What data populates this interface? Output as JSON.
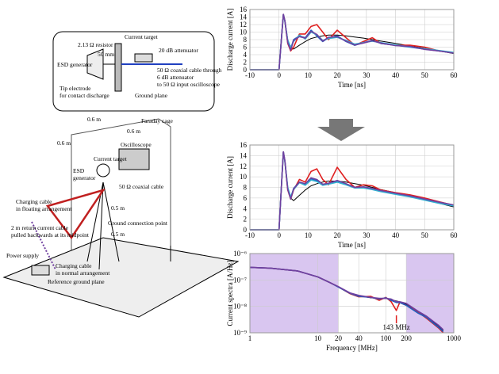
{
  "diagram": {
    "labels": [
      "2.13 Ω resistor",
      "Current target",
      "50 mm",
      "ESD generator",
      "20 dB attenuator",
      "50 Ω coaxial cable through",
      "6 dB attenuator",
      "to 50 Ω input oscilloscope",
      "Tip electrode",
      "for contact discharge",
      "Ground plane",
      "Faraday cage",
      "0.6 m",
      "0.6 m",
      "0.6 m",
      "Oscilloscope",
      "Current target",
      "ESD",
      "generator",
      "50 Ω coaxial cable",
      "Charging cable",
      "in floating arrangement",
      "0.5 m",
      "Ground connection point",
      "2 m return current cable",
      "pulled backwards at its midpoint",
      "0.5 m",
      "Power supply",
      "Charging cable",
      "in normal arrangement",
      "Reference ground plane"
    ]
  },
  "chart_data": [
    {
      "type": "line",
      "ylabel": "Discharge  current [A]",
      "xlabel": "Time [ns]",
      "xlim": [
        -10,
        60
      ],
      "xticks": [
        -10,
        0,
        10,
        20,
        30,
        40,
        50,
        60
      ],
      "ylim": [
        0,
        16
      ],
      "yticks": [
        0,
        2,
        4,
        6,
        8,
        10,
        12,
        14,
        16
      ],
      "grid": true,
      "x": [
        -10,
        0,
        1,
        1.5,
        2,
        3,
        4,
        5,
        7,
        9,
        11,
        13,
        15,
        17,
        20,
        23,
        26,
        29,
        32,
        35,
        40,
        45,
        50,
        55,
        60
      ],
      "series": [
        {
          "color": "#000000",
          "values": [
            0,
            0,
            10,
            14.7,
            13,
            8,
            6,
            5.5,
            6.5,
            7.5,
            8.3,
            8.7,
            9,
            9.2,
            9.2,
            9,
            8.7,
            8.4,
            8,
            7.6,
            7,
            6.3,
            5.7,
            5,
            4.3
          ]
        },
        {
          "color": "#e02020",
          "values": [
            0,
            0,
            10,
            14.7,
            13,
            7,
            5,
            6,
            9.5,
            9.5,
            11.5,
            12,
            10,
            8,
            10.5,
            8.5,
            6.5,
            7.5,
            8.5,
            7,
            6.5,
            6.5,
            6,
            5,
            4.5
          ]
        },
        {
          "color": "#2060c0",
          "values": [
            0,
            0,
            10,
            14.7,
            13,
            7.5,
            5.5,
            8,
            9,
            8.5,
            10.5,
            9,
            7.5,
            8.5,
            9,
            7.5,
            6.5,
            7.2,
            7.8,
            7,
            6.5,
            6,
            5.5,
            5,
            4.5
          ]
        },
        {
          "color": "#30b0d0",
          "values": [
            0,
            0,
            10,
            14.6,
            12.8,
            7.8,
            6,
            7.5,
            9.2,
            8.2,
            10,
            9.3,
            7.8,
            8.3,
            8.6,
            7.8,
            6.8,
            7.2,
            7.6,
            7.2,
            6.6,
            6.1,
            5.6,
            5.1,
            4.6
          ]
        },
        {
          "color": "#7040a0",
          "values": [
            0,
            0,
            10,
            14.7,
            13,
            7.2,
            5.2,
            7.8,
            8.8,
            8.4,
            10.2,
            9.4,
            7.6,
            8.6,
            8.8,
            7.6,
            6.6,
            7.1,
            7.7,
            7.1,
            6.4,
            6.2,
            5.4,
            5,
            4.4
          ]
        }
      ]
    },
    {
      "type": "line",
      "ylabel": "Discharge  current [A]",
      "xlabel": "Time [ns]",
      "xlim": [
        -10,
        60
      ],
      "xticks": [
        -10,
        0,
        10,
        20,
        30,
        40,
        50,
        60
      ],
      "ylim": [
        0,
        16
      ],
      "yticks": [
        0,
        2,
        4,
        6,
        8,
        10,
        12,
        14,
        16
      ],
      "grid": true,
      "x": [
        -10,
        0,
        1,
        1.5,
        2,
        3,
        4,
        5,
        7,
        9,
        11,
        13,
        15,
        17,
        20,
        23,
        26,
        29,
        32,
        35,
        40,
        45,
        50,
        55,
        60
      ],
      "series": [
        {
          "color": "#000000",
          "values": [
            0,
            0,
            10,
            14.7,
            13,
            8,
            6,
            5.5,
            6.5,
            7.5,
            8.3,
            8.7,
            9,
            9.2,
            9.2,
            9,
            8.7,
            8.4,
            8,
            7.6,
            7,
            6.3,
            5.7,
            5,
            4.3
          ]
        },
        {
          "color": "#e02020",
          "values": [
            0,
            0,
            10,
            14.7,
            13,
            7.5,
            5.8,
            7.5,
            9.5,
            9,
            11,
            11.5,
            9.5,
            8.5,
            11.8,
            9.5,
            8,
            8.5,
            8.3,
            7.5,
            7,
            6.6,
            6,
            5.3,
            4.6
          ]
        },
        {
          "color": "#2060c0",
          "values": [
            0,
            0,
            10,
            14.7,
            13,
            7.8,
            6,
            7.8,
            9,
            8.6,
            9.6,
            9.3,
            8.5,
            8.7,
            9.2,
            8.6,
            8,
            8,
            7.7,
            7.3,
            6.8,
            6.3,
            5.7,
            5.1,
            4.6
          ]
        },
        {
          "color": "#30b0d0",
          "values": [
            0,
            0,
            10,
            14.6,
            12.8,
            8,
            6.2,
            7.6,
            8.9,
            8.4,
            9.4,
            9.1,
            8.4,
            8.6,
            9,
            8.5,
            7.9,
            7.9,
            7.6,
            7.2,
            6.7,
            6.2,
            5.6,
            5,
            4.5
          ]
        },
        {
          "color": "#7040a0",
          "values": [
            0,
            0,
            10,
            14.7,
            13,
            7.6,
            5.8,
            7.7,
            9,
            8.7,
            9.8,
            9.5,
            8.6,
            8.8,
            9.3,
            8.7,
            8,
            8.1,
            7.8,
            7.4,
            6.9,
            6.4,
            5.8,
            5.2,
            4.7
          ]
        }
      ]
    },
    {
      "type": "line",
      "log": true,
      "ylabel": "Current spectra  [A/Hz]",
      "xlabel": "Frequency  [MHz]",
      "xlim": [
        1,
        1000
      ],
      "xticks": [
        1,
        10,
        20,
        40,
        100,
        200,
        1000
      ],
      "ylim": [
        1e-09,
        1e-06
      ],
      "yticks": [
        {
          "value": 1e-09,
          "label": "10⁻⁹"
        },
        {
          "value": 1e-08,
          "label": "10⁻⁸"
        },
        {
          "value": 1e-07,
          "label": "10⁻⁷"
        },
        {
          "value": 1e-06,
          "label": "10⁻⁶"
        }
      ],
      "grid": true,
      "shaded": [
        [
          1,
          20
        ],
        [
          200,
          1000
        ]
      ],
      "shade_color": "#d9c6f0",
      "annotation": {
        "text": "143 MHz",
        "x": 143,
        "color": "#e02020"
      },
      "x": [
        1,
        2,
        5,
        10,
        15,
        20,
        30,
        40,
        60,
        80,
        100,
        120,
        143,
        160,
        200,
        300,
        400,
        500,
        600,
        700
      ],
      "series": [
        {
          "color": "#000000",
          "values": [
            3e-07,
            2.8e-07,
            2.2e-07,
            1.3e-07,
            8e-08,
            5.5e-08,
            3.2e-08,
            2.5e-08,
            2.1e-08,
            2e-08,
            2e-08,
            1.8e-08,
            1.6e-08,
            1.5e-08,
            1.2e-08,
            6e-09,
            4e-09,
            2.5e-09,
            1.8e-09,
            1.2e-09
          ]
        },
        {
          "color": "#e02020",
          "values": [
            3e-07,
            2.8e-07,
            2.2e-07,
            1.3e-07,
            8e-08,
            5.5e-08,
            3e-08,
            2.3e-08,
            2.4e-08,
            1.7e-08,
            2.2e-08,
            1.5e-08,
            7e-09,
            1.4e-08,
            1.1e-08,
            6e-09,
            3.5e-09,
            2.2e-09,
            1.5e-09,
            1e-09
          ]
        },
        {
          "color": "#2060c0",
          "values": [
            3e-07,
            2.8e-07,
            2.2e-07,
            1.3e-07,
            8e-08,
            5.4e-08,
            3.1e-08,
            2.4e-08,
            2.2e-08,
            1.9e-08,
            2.1e-08,
            1.7e-08,
            1.4e-08,
            1.4e-08,
            1.1e-08,
            5.5e-09,
            3.8e-09,
            2.3e-09,
            1.6e-09,
            1.1e-09
          ]
        },
        {
          "color": "#7040a0",
          "values": [
            3e-07,
            2.8e-07,
            2.2e-07,
            1.3e-07,
            8e-08,
            5.6e-08,
            3.2e-08,
            2.6e-08,
            2.2e-08,
            2e-08,
            2e-08,
            1.9e-08,
            1.5e-08,
            1.5e-08,
            1.3e-08,
            6.5e-09,
            4.2e-09,
            2.7e-09,
            1.9e-09,
            1.3e-09
          ]
        }
      ]
    }
  ]
}
